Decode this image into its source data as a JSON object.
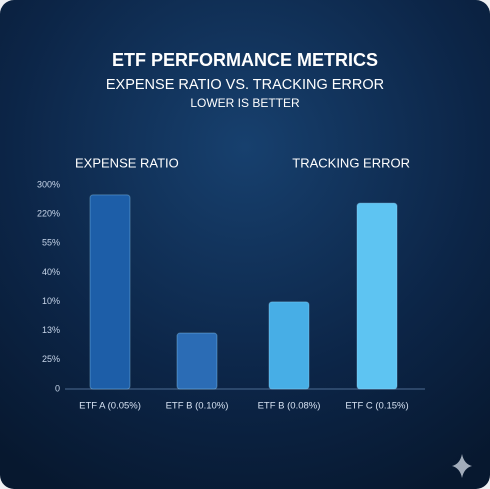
{
  "chart_data": {
    "type": "bar",
    "title": "ETF PERFORMANCE METRICS",
    "subtitle": "EXPENSE RATIO VS. TRACKING ERROR",
    "note": "LOWER IS BETTER",
    "group_labels": [
      "EXPENSE RATIO",
      "TRACKING ERROR"
    ],
    "categories": [
      "ETF A (0.05%)",
      "ETF B (0.10%)",
      "ETF B (0.08%)",
      "ETF C (0.15%)"
    ],
    "values": [
      6.66,
      1.92,
      2.99,
      6.38
    ],
    "colors": [
      "#1d5ea8",
      "#2b6cb5",
      "#47aee6",
      "#5ec4f2"
    ],
    "ylim": [
      0,
      7
    ],
    "yticks": [
      {
        "value": 0,
        "label": "0"
      },
      {
        "value": 1,
        "label": "25%"
      },
      {
        "value": 2,
        "label": "13%"
      },
      {
        "value": 3,
        "label": "10%"
      },
      {
        "value": 4,
        "label": "40%"
      },
      {
        "value": 5,
        "label": "55%"
      },
      {
        "value": 6,
        "label": "220%"
      },
      {
        "value": 7,
        "label": "300%"
      }
    ],
    "grid": false
  }
}
